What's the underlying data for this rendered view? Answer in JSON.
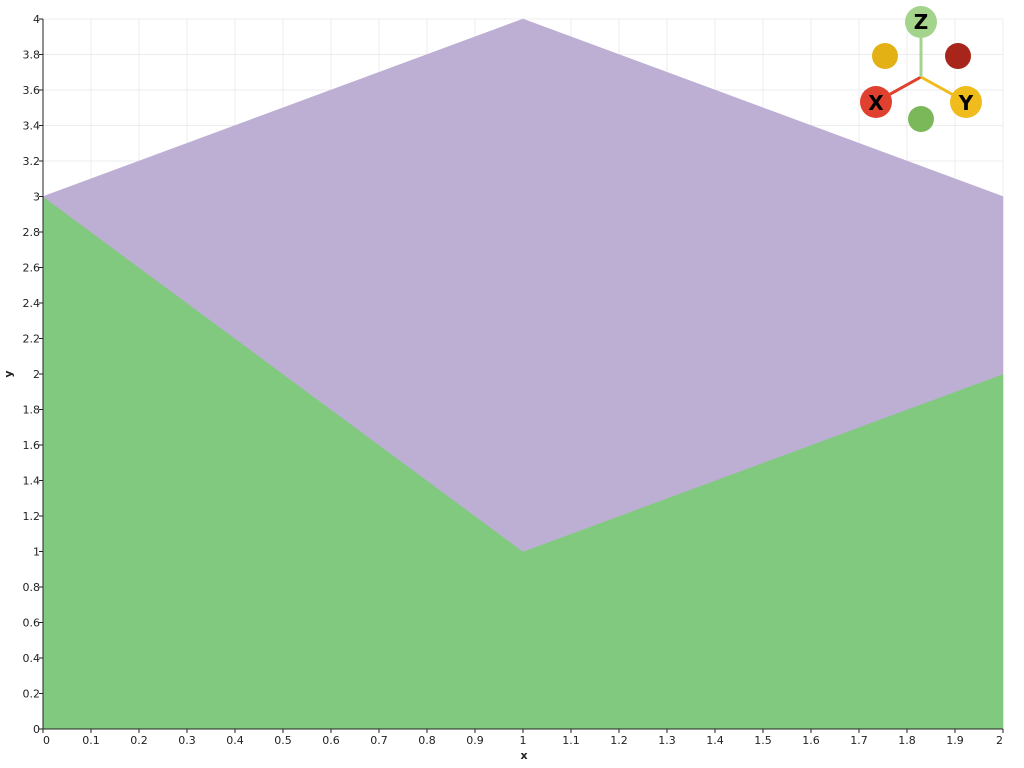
{
  "chart_data": {
    "type": "area",
    "xlabel": "x",
    "ylabel": "y",
    "xlim": [
      0,
      2
    ],
    "ylim": [
      0,
      4
    ],
    "grid": true,
    "x_ticks": [
      "0",
      "0.1",
      "0.2",
      "0.3",
      "0.4",
      "0.5",
      "0.6",
      "0.7",
      "0.8",
      "0.9",
      "1",
      "1.1",
      "1.2",
      "1.3",
      "1.4",
      "1.5",
      "1.6",
      "1.7",
      "1.8",
      "1.9",
      "2"
    ],
    "y_ticks": [
      "0",
      "0.2",
      "0.4",
      "0.6",
      "0.8",
      "1",
      "1.2",
      "1.4",
      "1.6",
      "1.8",
      "2",
      "2.2",
      "2.4",
      "2.6",
      "2.8",
      "3",
      "3.2",
      "3.4",
      "3.6",
      "3.8",
      "4"
    ],
    "x": [
      0,
      1,
      2
    ],
    "series": [
      {
        "lower": [
          0,
          0,
          0
        ],
        "upper": [
          3,
          1,
          2
        ],
        "color": "#80c97e"
      },
      {
        "lower": [
          3,
          1,
          2
        ],
        "upper": [
          3,
          4,
          3
        ],
        "color": "#bdaed4"
      }
    ]
  },
  "orientation_gizmo": {
    "x_label": "X",
    "y_label": "Y",
    "z_label": "Z",
    "x_color": "#e0402e",
    "y_color": "#f0bc1c",
    "z_color": "#a4d48c",
    "neg_x_color": "#a8251c",
    "neg_y_color": "#e4b114",
    "neg_z_color": "#7ab85a"
  }
}
